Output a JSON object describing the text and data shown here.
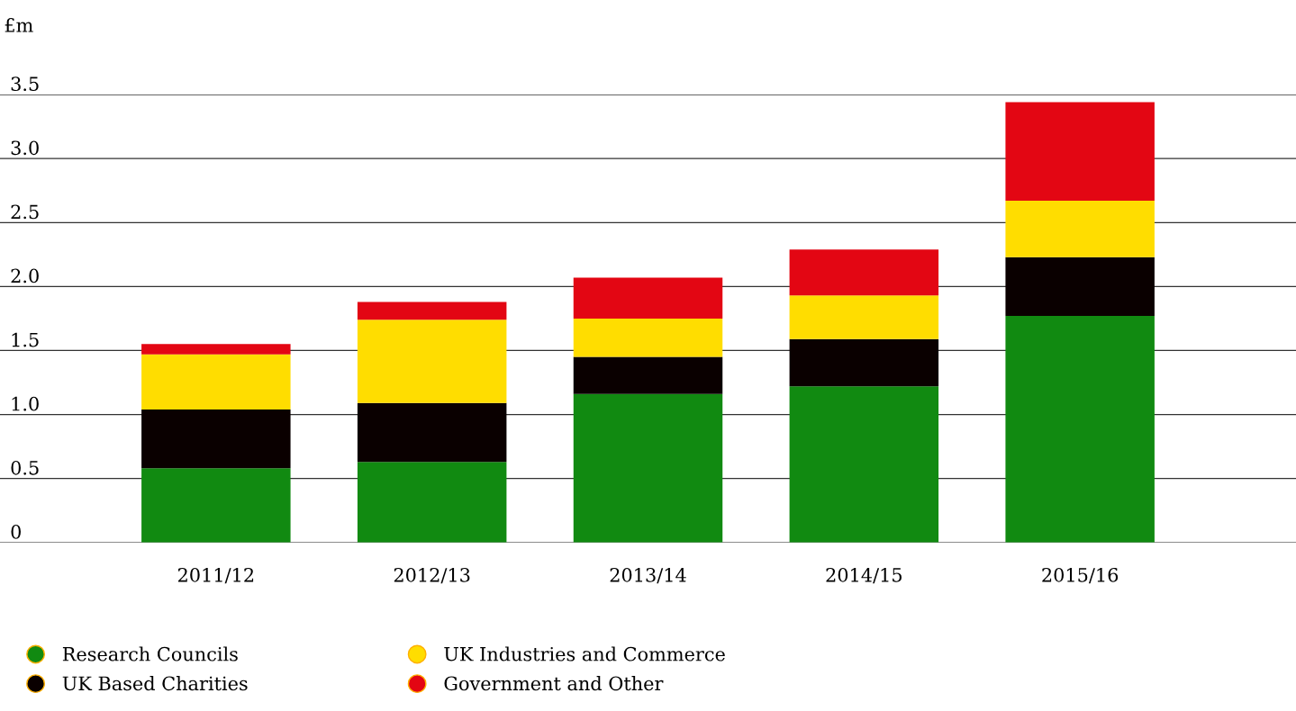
{
  "chart_data": {
    "type": "bar",
    "stacked": true,
    "ylabel": "£m",
    "categories": [
      "2011/12",
      "2012/13",
      "2013/14",
      "2014/15",
      "2015/16"
    ],
    "series": [
      {
        "name": "Research Councils",
        "color": "#118a11",
        "values": [
          0.58,
          0.63,
          1.16,
          1.22,
          1.77
        ]
      },
      {
        "name": "UK Based Charities",
        "color": "#0a0000",
        "values": [
          0.46,
          0.46,
          0.29,
          0.37,
          0.46
        ]
      },
      {
        "name": "UK Industries and Commerce",
        "color": "#ffdd00",
        "values": [
          0.43,
          0.65,
          0.3,
          0.34,
          0.44
        ]
      },
      {
        "name": "Government and Other",
        "color": "#e30613",
        "values": [
          0.08,
          0.14,
          0.32,
          0.36,
          0.77
        ]
      }
    ],
    "ylim": [
      0,
      3.5
    ],
    "yticks": [
      0,
      0.5,
      {
        "value": 1.0,
        "label": "1.0"
      },
      1.5,
      {
        "value": 2.0,
        "label": "2.0"
      },
      2.5,
      {
        "value": 3.0,
        "label": "3.0"
      },
      3.5
    ],
    "grid": "y",
    "legend": "bottom"
  }
}
